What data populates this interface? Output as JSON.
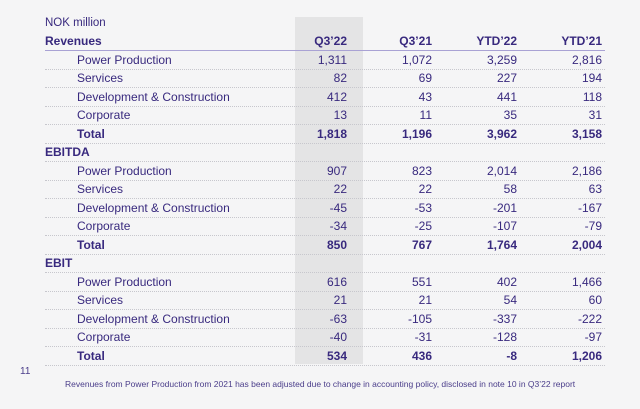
{
  "unit_label": "NOK million",
  "columns": [
    "Q3’22",
    "Q3’21",
    "YTD’22",
    "YTD’21"
  ],
  "highlighted_column": "Q3’22",
  "colors": {
    "text_indigo": "#38297e",
    "highlight_band": "#e4e4e5",
    "background": "#f5f5f6",
    "header_rule": "#a9a2d4",
    "row_rule": "#c7c7cd"
  },
  "sections": [
    {
      "name": "Revenues",
      "rows": [
        {
          "label": "Power Production",
          "values": [
            "1,311",
            "1,072",
            "3,259",
            "2,816"
          ],
          "bold": false
        },
        {
          "label": "Services",
          "values": [
            "82",
            "69",
            "227",
            "194"
          ],
          "bold": false
        },
        {
          "label": "Development & Construction",
          "values": [
            "412",
            "43",
            "441",
            "118"
          ],
          "bold": false
        },
        {
          "label": "Corporate",
          "values": [
            "13",
            "11",
            "35",
            "31"
          ],
          "bold": false
        },
        {
          "label": "Total",
          "values": [
            "1,818",
            "1,196",
            "3,962",
            "3,158"
          ],
          "bold": true
        }
      ]
    },
    {
      "name": "EBITDA",
      "rows": [
        {
          "label": "Power Production",
          "values": [
            "907",
            "823",
            "2,014",
            "2,186"
          ],
          "bold": false
        },
        {
          "label": "Services",
          "values": [
            "22",
            "22",
            "58",
            "63"
          ],
          "bold": false
        },
        {
          "label": "Development & Construction",
          "values": [
            "-45",
            "-53",
            "-201",
            "-167"
          ],
          "bold": false
        },
        {
          "label": "Corporate",
          "values": [
            "-34",
            "-25",
            "-107",
            "-79"
          ],
          "bold": false
        },
        {
          "label": "Total",
          "values": [
            "850",
            "767",
            "1,764",
            "2,004"
          ],
          "bold": true
        }
      ]
    },
    {
      "name": "EBIT",
      "rows": [
        {
          "label": "Power Production",
          "values": [
            "616",
            "551",
            "402",
            "1,466"
          ],
          "bold": false
        },
        {
          "label": "Services",
          "values": [
            "21",
            "21",
            "54",
            "60"
          ],
          "bold": false
        },
        {
          "label": "Development & Construction",
          "values": [
            "-63",
            "-105",
            "-337",
            "-222"
          ],
          "bold": false
        },
        {
          "label": "Corporate",
          "values": [
            "-40",
            "-31",
            "-128",
            "-97"
          ],
          "bold": false
        },
        {
          "label": "Total",
          "values": [
            "534",
            "436",
            "-8",
            "1,206"
          ],
          "bold": true
        }
      ]
    }
  ],
  "footer": {
    "page_number": "11",
    "footnote": "Revenues from Power Production from 2021 has been adjusted due to change in accounting policy, disclosed in note 10 in Q3’22 report"
  }
}
